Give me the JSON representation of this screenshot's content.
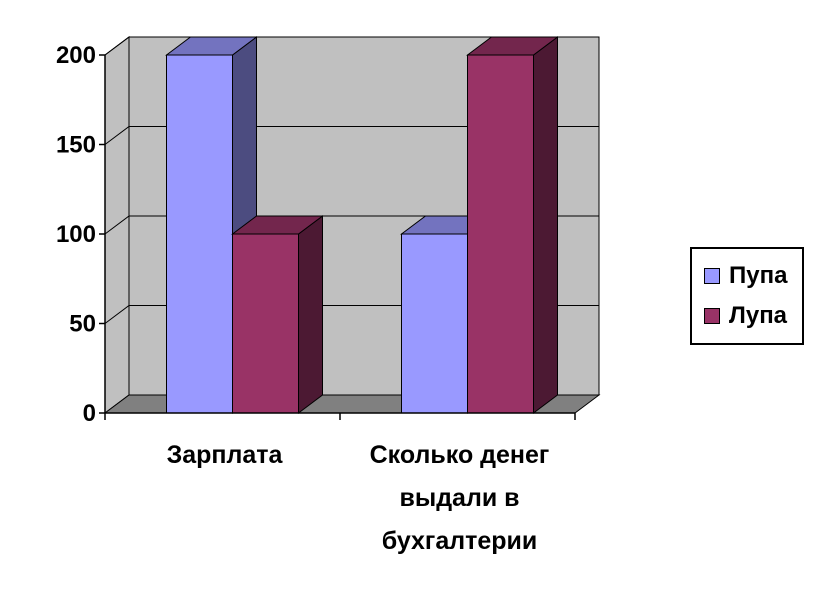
{
  "chart_data": {
    "type": "bar",
    "title": "",
    "xlabel": "",
    "ylabel": "",
    "categories": [
      [
        "Зарплата"
      ],
      [
        "Сколько денег",
        "выдали в",
        "бухгалтерии"
      ]
    ],
    "series": [
      {
        "name": "Пупа",
        "values": [
          200,
          100
        ]
      },
      {
        "name": "Лупа",
        "values": [
          100,
          200
        ]
      }
    ],
    "ylim": [
      0,
      200
    ],
    "yticks": [
      "0",
      "50",
      "100",
      "150",
      "200"
    ],
    "grid": true,
    "legend_position": "right",
    "colors": {
      "series": [
        "#9999ff",
        "#993366"
      ],
      "series_side": [
        "#4c4c80",
        "#4c1933"
      ],
      "series_top": [
        "#7373bf",
        "#73264d"
      ],
      "wall": "#c0c0c0",
      "floor": "#808080"
    }
  }
}
